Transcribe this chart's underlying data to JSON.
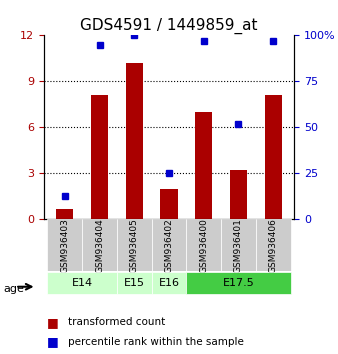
{
  "title": "GDS4591 / 1449859_at",
  "samples": [
    "GSM936403",
    "GSM936404",
    "GSM936405",
    "GSM936402",
    "GSM936400",
    "GSM936401",
    "GSM936406"
  ],
  "transformed_counts": [
    0.7,
    8.1,
    10.2,
    2.0,
    7.0,
    3.2,
    8.1
  ],
  "percentile_ranks": [
    12.5,
    95.0,
    100.0,
    25.0,
    97.0,
    52.0,
    97.0
  ],
  "age_groups": [
    {
      "label": "E14",
      "samples": [
        "GSM936403",
        "GSM936404"
      ],
      "color": "#ccffcc"
    },
    {
      "label": "E15",
      "samples": [
        "GSM936405"
      ],
      "color": "#ccffcc"
    },
    {
      "label": "E16",
      "samples": [
        "GSM936402"
      ],
      "color": "#ccffcc"
    },
    {
      "label": "E17.5",
      "samples": [
        "GSM936400",
        "GSM936401",
        "GSM936406"
      ],
      "color": "#44cc44"
    }
  ],
  "bar_color": "#aa0000",
  "dot_color": "#0000cc",
  "ylim_left": [
    0,
    12
  ],
  "ylim_right": [
    0,
    100
  ],
  "yticks_left": [
    0,
    3,
    6,
    9,
    12
  ],
  "yticks_right": [
    0,
    25,
    50,
    75,
    100
  ],
  "sample_box_color": "#cccccc",
  "age_label": "age",
  "legend_bar_label": "transformed count",
  "legend_dot_label": "percentile rank within the sample",
  "title_fontsize": 11,
  "axis_fontsize": 9,
  "tick_fontsize": 8
}
